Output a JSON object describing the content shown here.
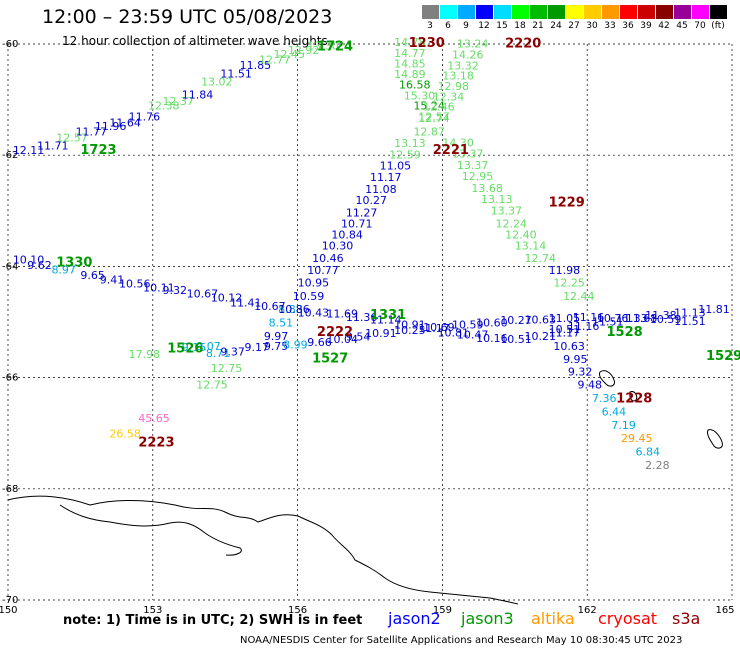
{
  "title": "12:00 – 23:59 UTC 05/08/2023",
  "subtitle": "12 hour collection of altimeter wave heights",
  "note": "note:  1) Time is in UTC;  2) SWH is in feet",
  "credit": "NOAA/NESDIS Center for Satellite Applications and Research     May 10 08:30:45 UTC 2023",
  "satellites": [
    {
      "name": "jason2",
      "color": "#0000ff"
    },
    {
      "name": "jason3",
      "color": "#009900"
    },
    {
      "name": "altika",
      "color": "#ff9900"
    },
    {
      "name": "cryosat",
      "color": "#ff0000"
    },
    {
      "name": "s3a",
      "color": "#8b0000"
    }
  ],
  "color_scale": {
    "labels": [
      "3",
      "6",
      "9",
      "12",
      "15",
      "18",
      "21",
      "24",
      "27",
      "30",
      "33",
      "36",
      "39",
      "42",
      "45",
      "70",
      "(ft)"
    ],
    "colors": [
      "#808080",
      "#00ffff",
      "#00aaff",
      "#0000ff",
      "#00ddff",
      "#00ff00",
      "#00bb00",
      "#009900",
      "#ffff00",
      "#ffcc00",
      "#ff9900",
      "#ff0000",
      "#cc0000",
      "#880000",
      "#990099",
      "#ff00ff",
      "#000000"
    ]
  },
  "chart_data": {
    "type": "scatter",
    "title": "12:00 – 23:59 UTC 05/08/2023",
    "subtitle": "12 hour collection of altimeter wave heights",
    "xlabel": "",
    "ylabel": "",
    "x_ticks": [
      "150",
      "153",
      "156",
      "159",
      "162",
      "165"
    ],
    "y_ticks": [
      "-60",
      "-62",
      "-64",
      "-66",
      "-68",
      "-70"
    ],
    "xlim": [
      150,
      165
    ],
    "ylim": [
      -70,
      -60
    ],
    "grid": true,
    "points": [
      {
        "lon": 150.1,
        "lat": -61.98,
        "v": "12.11",
        "c": "#0000cc"
      },
      {
        "lon": 150.6,
        "lat": -61.9,
        "v": "11.71",
        "c": "#0000cc"
      },
      {
        "lon": 151.0,
        "lat": -61.75,
        "v": "12.57",
        "c": "#66dd66"
      },
      {
        "lon": 151.4,
        "lat": -61.65,
        "v": "11.77",
        "c": "#0000cc"
      },
      {
        "lon": 151.8,
        "lat": -61.55,
        "v": "11.96",
        "c": "#0000cc"
      },
      {
        "lon": 152.1,
        "lat": -61.48,
        "v": "11.64",
        "c": "#0000cc"
      },
      {
        "lon": 152.5,
        "lat": -61.38,
        "v": "11.76",
        "c": "#0000cc"
      },
      {
        "lon": 152.9,
        "lat": -61.18,
        "v": "12.38",
        "c": "#66dd66"
      },
      {
        "lon": 153.2,
        "lat": -61.1,
        "v": "12.37",
        "c": "#66dd66"
      },
      {
        "lon": 153.6,
        "lat": -60.98,
        "v": "11.84",
        "c": "#0000cc"
      },
      {
        "lon": 154.0,
        "lat": -60.75,
        "v": "13.02",
        "c": "#66dd66"
      },
      {
        "lon": 154.4,
        "lat": -60.6,
        "v": "11.51",
        "c": "#0000cc"
      },
      {
        "lon": 154.8,
        "lat": -60.45,
        "v": "11.85",
        "c": "#0000cc"
      },
      {
        "lon": 155.2,
        "lat": -60.35,
        "v": "12.77",
        "c": "#66dd66"
      },
      {
        "lon": 155.5,
        "lat": -60.25,
        "v": "12.45",
        "c": "#66dd66"
      },
      {
        "lon": 155.8,
        "lat": -60.18,
        "v": "12.92",
        "c": "#66dd66"
      },
      {
        "lon": 156.2,
        "lat": -60.1,
        "v": "13.30",
        "c": "#66dd66"
      },
      {
        "lon": 158.0,
        "lat": -60.04,
        "v": "14.78",
        "c": "#66dd66"
      },
      {
        "lon": 158.0,
        "lat": -60.23,
        "v": "14.77",
        "c": "#66dd66"
      },
      {
        "lon": 158.0,
        "lat": -60.42,
        "v": "14.85",
        "c": "#66dd66"
      },
      {
        "lon": 158.0,
        "lat": -60.61,
        "v": "14.89",
        "c": "#66dd66"
      },
      {
        "lon": 158.1,
        "lat": -60.8,
        "v": "16.58",
        "c": "#009900"
      },
      {
        "lon": 158.2,
        "lat": -61.0,
        "v": "15.30",
        "c": "#66dd66"
      },
      {
        "lon": 158.4,
        "lat": -61.18,
        "v": "15.24",
        "c": "#009900"
      },
      {
        "lon": 158.5,
        "lat": -61.38,
        "v": "12.57",
        "c": "#66dd66"
      },
      {
        "lon": 158.4,
        "lat": -61.65,
        "v": "12.87",
        "c": "#66dd66"
      },
      {
        "lon": 159.3,
        "lat": -60.06,
        "v": "13.24",
        "c": "#66dd66"
      },
      {
        "lon": 159.2,
        "lat": -60.26,
        "v": "14.26",
        "c": "#66dd66"
      },
      {
        "lon": 159.1,
        "lat": -60.46,
        "v": "13.32",
        "c": "#66dd66"
      },
      {
        "lon": 159.0,
        "lat": -60.64,
        "v": "13.18",
        "c": "#66dd66"
      },
      {
        "lon": 158.9,
        "lat": -60.83,
        "v": "12.98",
        "c": "#66dd66"
      },
      {
        "lon": 158.8,
        "lat": -61.02,
        "v": "12.34",
        "c": "#66dd66"
      },
      {
        "lon": 158.6,
        "lat": -61.2,
        "v": "12.46",
        "c": "#66dd66"
      },
      {
        "lon": 158.5,
        "lat": -61.4,
        "v": "12.74",
        "c": "#66dd66"
      },
      {
        "lon": 158.0,
        "lat": -61.85,
        "v": "13.13",
        "c": "#66dd66"
      },
      {
        "lon": 159.0,
        "lat": -61.84,
        "v": "14.30",
        "c": "#66dd66"
      },
      {
        "lon": 157.9,
        "lat": -62.06,
        "v": "12.59",
        "c": "#66dd66"
      },
      {
        "lon": 159.2,
        "lat": -62.04,
        "v": "13.37",
        "c": "#66dd66"
      },
      {
        "lon": 157.7,
        "lat": -62.26,
        "v": "11.05",
        "c": "#0000cc"
      },
      {
        "lon": 159.3,
        "lat": -62.25,
        "v": "13.37",
        "c": "#66dd66"
      },
      {
        "lon": 157.5,
        "lat": -62.46,
        "v": "11.17",
        "c": "#0000cc"
      },
      {
        "lon": 159.4,
        "lat": -62.45,
        "v": "12.95",
        "c": "#66dd66"
      },
      {
        "lon": 157.4,
        "lat": -62.68,
        "v": "11.08",
        "c": "#0000cc"
      },
      {
        "lon": 159.6,
        "lat": -62.66,
        "v": "13.68",
        "c": "#66dd66"
      },
      {
        "lon": 157.2,
        "lat": -62.88,
        "v": "10.27",
        "c": "#0000cc"
      },
      {
        "lon": 159.8,
        "lat": -62.86,
        "v": "13.13",
        "c": "#66dd66"
      },
      {
        "lon": 157.0,
        "lat": -63.1,
        "v": "11.27",
        "c": "#0000cc"
      },
      {
        "lon": 160.0,
        "lat": -63.07,
        "v": "13.37",
        "c": "#66dd66"
      },
      {
        "lon": 156.9,
        "lat": -63.3,
        "v": "10.71",
        "c": "#0000cc"
      },
      {
        "lon": 160.1,
        "lat": -63.3,
        "v": "12.24",
        "c": "#66dd66"
      },
      {
        "lon": 156.7,
        "lat": -63.5,
        "v": "10.84",
        "c": "#0000cc"
      },
      {
        "lon": 160.3,
        "lat": -63.5,
        "v": "12.40",
        "c": "#66dd66"
      },
      {
        "lon": 156.5,
        "lat": -63.7,
        "v": "10.30",
        "c": "#0000cc"
      },
      {
        "lon": 160.5,
        "lat": -63.7,
        "v": "13.14",
        "c": "#66dd66"
      },
      {
        "lon": 156.3,
        "lat": -63.92,
        "v": "10.46",
        "c": "#0000cc"
      },
      {
        "lon": 160.7,
        "lat": -63.92,
        "v": "12.74",
        "c": "#66dd66"
      },
      {
        "lon": 156.2,
        "lat": -64.14,
        "v": "10.77",
        "c": "#0000cc"
      },
      {
        "lon": 161.2,
        "lat": -64.14,
        "v": "11.98",
        "c": "#0000cc"
      },
      {
        "lon": 156.0,
        "lat": -64.36,
        "v": "10.95",
        "c": "#0000cc"
      },
      {
        "lon": 161.3,
        "lat": -64.36,
        "v": "12.25",
        "c": "#66dd66"
      },
      {
        "lon": 155.9,
        "lat": -64.6,
        "v": "10.59",
        "c": "#0000cc"
      },
      {
        "lon": 161.5,
        "lat": -64.6,
        "v": "12.44",
        "c": "#66dd66"
      },
      {
        "lon": 155.6,
        "lat": -64.84,
        "v": "8.83",
        "c": "#00aadd"
      },
      {
        "lon": 155.4,
        "lat": -65.08,
        "v": "8.51",
        "c": "#00aadd"
      },
      {
        "lon": 155.3,
        "lat": -65.32,
        "v": "9.97",
        "c": "#0000cc"
      },
      {
        "lon": 150.1,
        "lat": -63.95,
        "v": "10.10",
        "c": "#0000cc"
      },
      {
        "lon": 150.4,
        "lat": -64.05,
        "v": "9.62",
        "c": "#0000cc"
      },
      {
        "lon": 150.9,
        "lat": -64.13,
        "v": "8.97",
        "c": "#00aadd"
      },
      {
        "lon": 151.5,
        "lat": -64.23,
        "v": "9.65",
        "c": "#0000cc"
      },
      {
        "lon": 151.9,
        "lat": -64.31,
        "v": "9.41",
        "c": "#0000cc"
      },
      {
        "lon": 152.3,
        "lat": -64.38,
        "v": "10.56",
        "c": "#0000cc"
      },
      {
        "lon": 152.8,
        "lat": -64.45,
        "v": "10.11",
        "c": "#0000cc"
      },
      {
        "lon": 153.2,
        "lat": -64.5,
        "v": "9.32",
        "c": "#0000cc"
      },
      {
        "lon": 153.7,
        "lat": -64.56,
        "v": "10.67",
        "c": "#0000cc"
      },
      {
        "lon": 154.2,
        "lat": -64.63,
        "v": "10.12",
        "c": "#0000cc"
      },
      {
        "lon": 154.6,
        "lat": -64.72,
        "v": "11.41",
        "c": "#0000cc"
      },
      {
        "lon": 155.1,
        "lat": -64.78,
        "v": "10.67",
        "c": "#0000cc"
      },
      {
        "lon": 155.6,
        "lat": -64.84,
        "v": "10.86",
        "c": "#0000cc"
      },
      {
        "lon": 156.0,
        "lat": -64.9,
        "v": "10.43",
        "c": "#0000cc"
      },
      {
        "lon": 156.6,
        "lat": -64.92,
        "v": "11.69",
        "c": "#0000cc"
      },
      {
        "lon": 157.0,
        "lat": -64.98,
        "v": "11.36",
        "c": "#0000cc"
      },
      {
        "lon": 157.5,
        "lat": -65.03,
        "v": "11.14",
        "c": "#0000cc"
      },
      {
        "lon": 158.0,
        "lat": -65.12,
        "v": "10.91",
        "c": "#0000cc"
      },
      {
        "lon": 158.5,
        "lat": -65.18,
        "v": "11.17",
        "c": "#0000cc"
      },
      {
        "lon": 158.9,
        "lat": -65.26,
        "v": "10.81",
        "c": "#0000cc"
      },
      {
        "lon": 159.3,
        "lat": -65.3,
        "v": "10.47",
        "c": "#0000cc"
      },
      {
        "lon": 159.7,
        "lat": -65.36,
        "v": "10.16",
        "c": "#0000cc"
      },
      {
        "lon": 160.2,
        "lat": -65.38,
        "v": "10.51",
        "c": "#0000cc"
      },
      {
        "lon": 160.7,
        "lat": -65.32,
        "v": "10.21",
        "c": "#0000cc"
      },
      {
        "lon": 161.2,
        "lat": -65.2,
        "v": "10.51",
        "c": "#0000cc"
      },
      {
        "lon": 161.6,
        "lat": -65.14,
        "v": "11.16",
        "c": "#0000cc"
      },
      {
        "lon": 162.1,
        "lat": -65.06,
        "v": "11.51",
        "c": "#0000cc"
      },
      {
        "lon": 162.6,
        "lat": -65.0,
        "v": "11.33",
        "c": "#0000cc"
      },
      {
        "lon": 163.2,
        "lat": -64.95,
        "v": "11.38",
        "c": "#0000cc"
      },
      {
        "lon": 163.8,
        "lat": -64.9,
        "v": "11.13",
        "c": "#0000cc"
      },
      {
        "lon": 164.3,
        "lat": -64.84,
        "v": "11.81",
        "c": "#0000cc"
      },
      {
        "lon": 154.1,
        "lat": -65.63,
        "v": "8.71",
        "c": "#00aadd"
      },
      {
        "lon": 154.4,
        "lat": -65.6,
        "v": "9.37",
        "c": "#0000cc"
      },
      {
        "lon": 154.9,
        "lat": -65.52,
        "v": "9.17",
        "c": "#0000cc"
      },
      {
        "lon": 155.3,
        "lat": -65.5,
        "v": "9.75",
        "c": "#0000cc"
      },
      {
        "lon": 155.7,
        "lat": -65.48,
        "v": "8.99",
        "c": "#00aadd"
      },
      {
        "lon": 156.2,
        "lat": -65.43,
        "v": "9.66",
        "c": "#0000cc"
      },
      {
        "lon": 156.6,
        "lat": -65.38,
        "v": "10.04",
        "c": "#0000cc"
      },
      {
        "lon": 157.0,
        "lat": -65.33,
        "v": "9.54",
        "c": "#0000cc"
      },
      {
        "lon": 157.4,
        "lat": -65.27,
        "v": "10.91",
        "c": "#0000cc"
      },
      {
        "lon": 158.0,
        "lat": -65.22,
        "v": "10.25",
        "c": "#0000cc"
      },
      {
        "lon": 158.6,
        "lat": -65.16,
        "v": "10.69",
        "c": "#0000cc"
      },
      {
        "lon": 159.2,
        "lat": -65.12,
        "v": "10.59",
        "c": "#0000cc"
      },
      {
        "lon": 159.7,
        "lat": -65.08,
        "v": "10.60",
        "c": "#0000cc"
      },
      {
        "lon": 160.2,
        "lat": -65.04,
        "v": "10.27",
        "c": "#0000cc"
      },
      {
        "lon": 160.7,
        "lat": -65.03,
        "v": "10.63",
        "c": "#0000cc"
      },
      {
        "lon": 161.2,
        "lat": -65.0,
        "v": "11.05",
        "c": "#0000cc"
      },
      {
        "lon": 161.7,
        "lat": -64.98,
        "v": "11.16",
        "c": "#0000cc"
      },
      {
        "lon": 162.2,
        "lat": -65.0,
        "v": "10.76",
        "c": "#0000cc"
      },
      {
        "lon": 162.8,
        "lat": -65.0,
        "v": "11.68",
        "c": "#0000cc"
      },
      {
        "lon": 163.3,
        "lat": -65.02,
        "v": "10.59",
        "c": "#0000cc"
      },
      {
        "lon": 163.8,
        "lat": -65.05,
        "v": "11.51",
        "c": "#0000cc"
      },
      {
        "lon": 161.2,
        "lat": -65.26,
        "v": "11.17",
        "c": "#0000cc"
      },
      {
        "lon": 161.3,
        "lat": -65.5,
        "v": "10.63",
        "c": "#0000cc"
      },
      {
        "lon": 161.5,
        "lat": -65.74,
        "v": "9.95",
        "c": "#0000cc"
      },
      {
        "lon": 161.6,
        "lat": -65.96,
        "v": "9.32",
        "c": "#0000cc"
      },
      {
        "lon": 161.8,
        "lat": -66.2,
        "v": "9.48",
        "c": "#0000cc"
      },
      {
        "lon": 162.1,
        "lat": -66.44,
        "v": "7.36",
        "c": "#00aadd"
      },
      {
        "lon": 162.3,
        "lat": -66.68,
        "v": "6.44",
        "c": "#00aadd"
      },
      {
        "lon": 162.5,
        "lat": -66.92,
        "v": "7.19",
        "c": "#00aadd"
      },
      {
        "lon": 162.7,
        "lat": -67.16,
        "v": "29.45",
        "c": "#ff9900"
      },
      {
        "lon": 163.0,
        "lat": -67.4,
        "v": "6.84",
        "c": "#00aadd"
      },
      {
        "lon": 163.2,
        "lat": -67.64,
        "v": "2.28",
        "c": "#808080"
      },
      {
        "lon": 152.5,
        "lat": -65.65,
        "v": "17.98",
        "c": "#66dd66"
      },
      {
        "lon": 153.6,
        "lat": -65.52,
        "v": "9.15",
        "c": "#00aadd"
      },
      {
        "lon": 153.9,
        "lat": -65.5,
        "v": "9.07",
        "c": "#00aadd"
      },
      {
        "lon": 154.2,
        "lat": -65.9,
        "v": "12.75",
        "c": "#66dd66"
      },
      {
        "lon": 153.9,
        "lat": -66.2,
        "v": "12.75",
        "c": "#66dd66"
      },
      {
        "lon": 152.7,
        "lat": -66.8,
        "v": "45.65",
        "c": "#ff66cc"
      },
      {
        "lon": 152.1,
        "lat": -67.08,
        "v": "26.58",
        "c": "#ffcc00"
      }
    ],
    "time_labels": [
      {
        "lon": 156.4,
        "lat": -60.12,
        "t": "1724",
        "c": "#009900"
      },
      {
        "lon": 158.3,
        "lat": -60.05,
        "t": "1230",
        "c": "#8b0000"
      },
      {
        "lon": 160.3,
        "lat": -60.06,
        "t": "2220",
        "c": "#8b0000"
      },
      {
        "lon": 151.5,
        "lat": -61.98,
        "t": "1723",
        "c": "#009900"
      },
      {
        "lon": 158.8,
        "lat": -61.98,
        "t": "2221",
        "c": "#8b0000"
      },
      {
        "lon": 161.2,
        "lat": -62.92,
        "t": "1229",
        "c": "#8b0000"
      },
      {
        "lon": 151.0,
        "lat": -64.0,
        "t": "1330",
        "c": "#009900"
      },
      {
        "lon": 157.5,
        "lat": -64.95,
        "t": "1331",
        "c": "#009900"
      },
      {
        "lon": 156.4,
        "lat": -65.25,
        "t": "2222",
        "c": "#8b0000"
      },
      {
        "lon": 162.4,
        "lat": -65.25,
        "t": "1528",
        "c": "#009900"
      },
      {
        "lon": 156.3,
        "lat": -65.73,
        "t": "1527",
        "c": "#009900"
      },
      {
        "lon": 153.3,
        "lat": -65.55,
        "t": "1526",
        "c": "#009900"
      },
      {
        "lon": 162.6,
        "lat": -66.45,
        "t": "1228",
        "c": "#8b0000"
      },
      {
        "lon": 164.6,
        "lat": -65.68,
        "t": "1529",
        "c": "#009900"
      },
      {
        "lon": 152.7,
        "lat": -67.24,
        "t": "2223",
        "c": "#8b0000"
      }
    ]
  }
}
